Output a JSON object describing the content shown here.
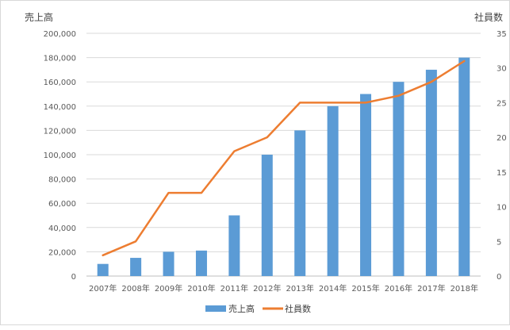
{
  "chart_data": {
    "type": "bar",
    "categories": [
      "2007年",
      "2008年",
      "2009年",
      "2010年",
      "2011年",
      "2012年",
      "2013年",
      "2014年",
      "2015年",
      "2016年",
      "2017年",
      "2018年"
    ],
    "series": [
      {
        "name": "売上高",
        "type": "bar",
        "axis": "left",
        "color": "#5b9bd5",
        "values": [
          10000,
          15000,
          20000,
          21000,
          50000,
          100000,
          120000,
          140000,
          150000,
          160000,
          170000,
          180000
        ]
      },
      {
        "name": "社員数",
        "type": "line",
        "axis": "right",
        "color": "#ed7d31",
        "values": [
          3,
          5,
          12,
          12,
          18,
          20,
          25,
          25,
          25,
          26,
          28,
          31
        ]
      }
    ],
    "y_left": {
      "title": "売上高",
      "ylim": [
        0,
        200000
      ],
      "ticks": [
        "0",
        "20,000",
        "40,000",
        "60,000",
        "80,000",
        "100,000",
        "120,000",
        "140,000",
        "160,000",
        "180,000",
        "200,000"
      ]
    },
    "y_right": {
      "title": "社員数",
      "ylim": [
        0,
        35
      ],
      "ticks": [
        "0",
        "5",
        "10",
        "15",
        "20",
        "25",
        "30",
        "35"
      ]
    },
    "grid": true,
    "legend_position": "bottom"
  }
}
